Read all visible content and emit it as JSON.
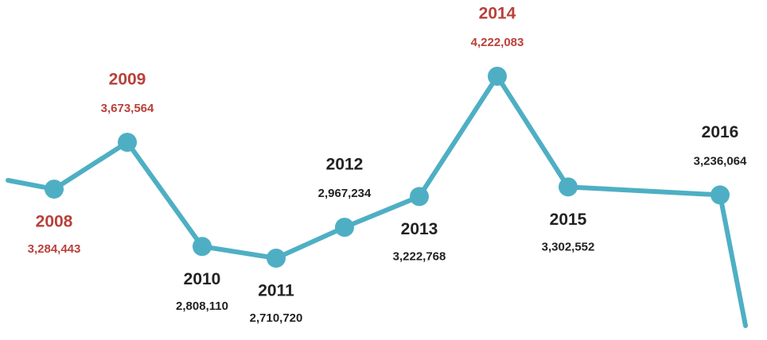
{
  "chart_data": {
    "type": "line",
    "categories": [
      "2008",
      "2009",
      "2010",
      "2011",
      "2012",
      "2013",
      "2014",
      "2015",
      "2016"
    ],
    "values": [
      3284443,
      3673564,
      2808110,
      2710720,
      2967234,
      3222768,
      4222083,
      3302552,
      3236064
    ],
    "value_labels": [
      "3,284,443",
      "3,673,564",
      "2,808,110",
      "2,710,720",
      "2,967,234",
      "3,222,768",
      "4,222,083",
      "3,302,552",
      "3,236,064"
    ],
    "color": "#4eafc4",
    "label_colors": [
      "#b8413a",
      "#b8413a",
      "#222222",
      "#222222",
      "#222222",
      "#222222",
      "#b8413a",
      "#222222",
      "#222222"
    ]
  }
}
